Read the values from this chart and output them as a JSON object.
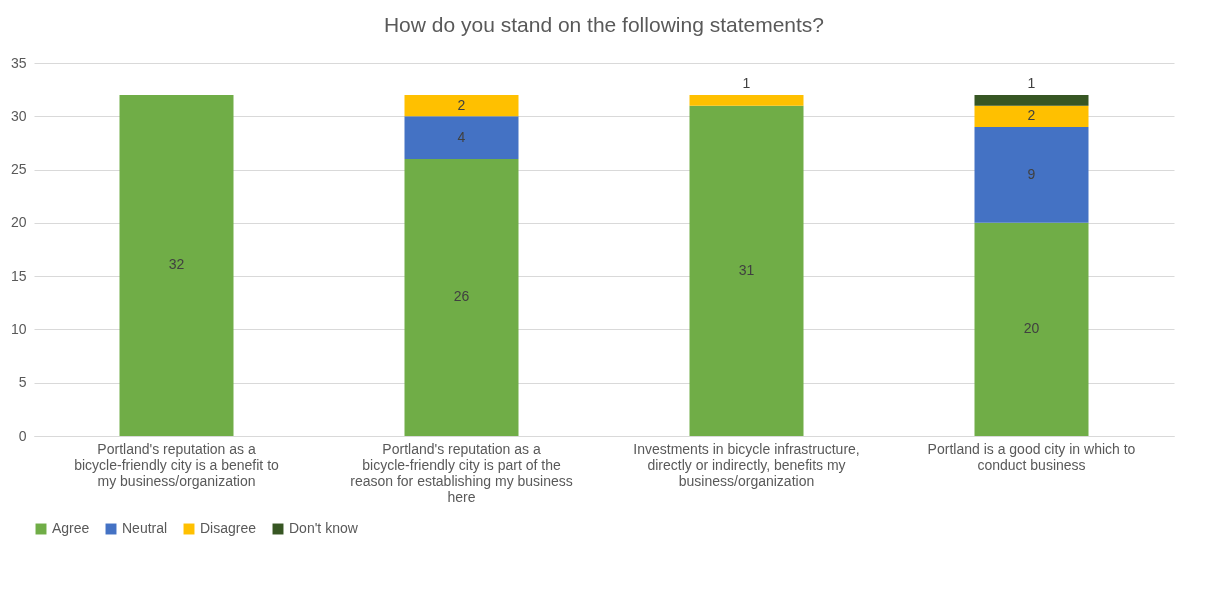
{
  "chart_data": {
    "type": "bar",
    "title": "How do you stand on the following statements?",
    "categories": [
      "Portland's reputation as a bicycle-friendly city is a benefit to my business/organization",
      "Portland's reputation as a bicycle-friendly city is part of the reason for establishing my business here",
      "Investments in bicycle infrastructure, directly or indirectly, benefits my business/organization",
      "Portland is a good city in which to conduct business"
    ],
    "series": [
      {
        "name": "Agree",
        "color": "#70ad47",
        "values": [
          32,
          26,
          31,
          20
        ]
      },
      {
        "name": "Neutral",
        "color": "#4472c4",
        "values": [
          null,
          4,
          null,
          9
        ]
      },
      {
        "name": "Disagree",
        "color": "#ffc000",
        "values": [
          null,
          2,
          1,
          2
        ]
      },
      {
        "name": "Don't know",
        "color": "#375623",
        "values": [
          null,
          null,
          null,
          1
        ]
      }
    ],
    "stacked": true,
    "ylim": [
      0,
      35
    ],
    "yticks": [
      0,
      5,
      10,
      15,
      20,
      25,
      30,
      35
    ],
    "grid": "y",
    "legend": "bottom",
    "data_labels": true
  }
}
